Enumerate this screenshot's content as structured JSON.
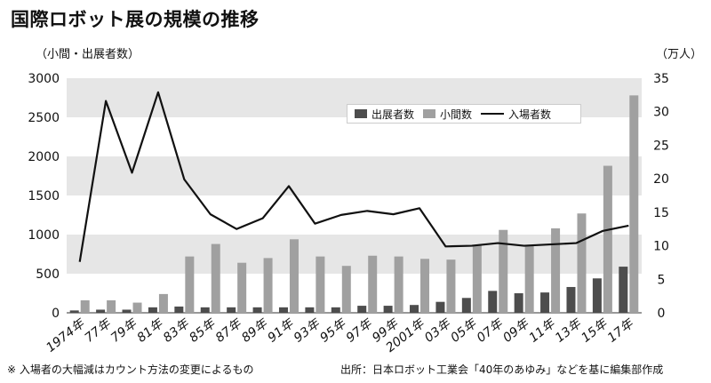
{
  "title": "国際ロボット展の規模の推移",
  "left_axis_title": "（小間・出展者数）",
  "right_axis_title": "（万人）",
  "note": "※ 入場者の大幅減はカウント方法の変更によるもの",
  "source": "出所：日本ロボット工業会「40年のあゆみ」などを基に編集部作成",
  "colors": {
    "exhibitors": "#4d4d4d",
    "booths": "#a0a0a0",
    "visitors": "#111111",
    "band": "#e6e6e6"
  },
  "chart_data": {
    "type": "bar",
    "title": "国際ロボット展の規模の推移",
    "categories": [
      "1974年",
      "77年",
      "79年",
      "81年",
      "83年",
      "85年",
      "87年",
      "89年",
      "91年",
      "93年",
      "95年",
      "97年",
      "99年",
      "2001年",
      "03年",
      "05年",
      "07年",
      "09年",
      "11年",
      "13年",
      "15年",
      "17年"
    ],
    "series": [
      {
        "name": "出展者数",
        "axis": "left",
        "type": "bar",
        "values": [
          30,
          40,
          40,
          70,
          80,
          70,
          70,
          70,
          70,
          70,
          70,
          90,
          90,
          100,
          140,
          190,
          280,
          250,
          260,
          330,
          440,
          590
        ]
      },
      {
        "name": "小間数",
        "axis": "left",
        "type": "bar",
        "values": [
          160,
          160,
          130,
          240,
          720,
          880,
          640,
          700,
          940,
          720,
          600,
          730,
          720,
          690,
          680,
          870,
          1060,
          860,
          1080,
          1270,
          1880,
          2780
        ]
      },
      {
        "name": "入場者数",
        "axis": "right",
        "type": "line",
        "values": [
          7.6,
          31.6,
          20.9,
          32.9,
          19.9,
          14.7,
          12.5,
          14.1,
          18.9,
          13.3,
          14.6,
          15.2,
          14.7,
          15.6,
          9.9,
          10.0,
          10.4,
          10.0,
          10.2,
          10.4,
          12.2,
          13.0
        ]
      }
    ],
    "ylim_left": [
      0,
      3000
    ],
    "ylim_right": [
      0,
      35
    ],
    "yticks_left": [
      "0",
      "500",
      "1000",
      "1500",
      "2000",
      "2500",
      "3000"
    ],
    "yticks_right": [
      "0",
      "5",
      "10",
      "15",
      "20",
      "25",
      "30",
      "35"
    ],
    "ylabel_left": "（小間・出展者数）",
    "ylabel_right": "（万人）",
    "legend_position": "top-right",
    "grid": "alternating-bands"
  }
}
